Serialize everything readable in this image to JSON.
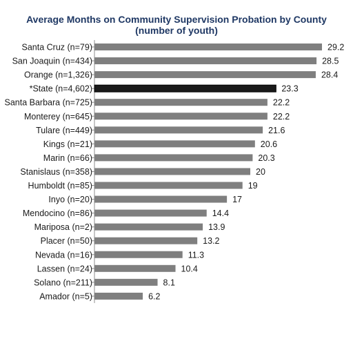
{
  "chart_data": {
    "type": "bar",
    "orientation": "horizontal",
    "title": "Average Months on Community Supervision Probation by County",
    "subtitle": "(number of youth)",
    "categories": [
      "Santa Cruz (n=79)",
      "San Joaquin (n=434)",
      "Orange (n=1,326)",
      "*State (n=4,602)",
      "Santa Barbara (n=725)",
      "Monterey (n=645)",
      "Tulare (n=449)",
      "Kings (n=21)",
      "Marin (n=66)",
      "Stanislaus (n=358)",
      "Humboldt (n=85)",
      "Inyo (n=20)",
      "Mendocino (n=86)",
      "Mariposa (n=2)",
      "Placer (n=50)",
      "Nevada (n=16)",
      "Lassen (n=24)",
      "Solano (n=211)",
      "Amador (n=5)"
    ],
    "values": [
      29.2,
      28.5,
      28.4,
      23.3,
      22.2,
      22.2,
      21.6,
      20.6,
      20.3,
      20,
      19,
      17,
      14.4,
      13.9,
      13.2,
      11.3,
      10.4,
      8.1,
      6.2
    ],
    "value_labels": [
      "29.2",
      "28.5",
      "28.4",
      "23.3",
      "22.2",
      "22.2",
      "21.6",
      "20.6",
      "20.3",
      "20",
      "19",
      "17",
      "14.4",
      "13.9",
      "13.2",
      "11.3",
      "10.4",
      "8.1",
      "6.2"
    ],
    "highlight_category": "*State (n=4,602)",
    "xlim": [
      0,
      30
    ],
    "grid": false,
    "legend": "none",
    "colors": {
      "bar": "#7f7f7f",
      "highlight_bar": "#1a1a1a",
      "title": "#1f3864"
    }
  }
}
